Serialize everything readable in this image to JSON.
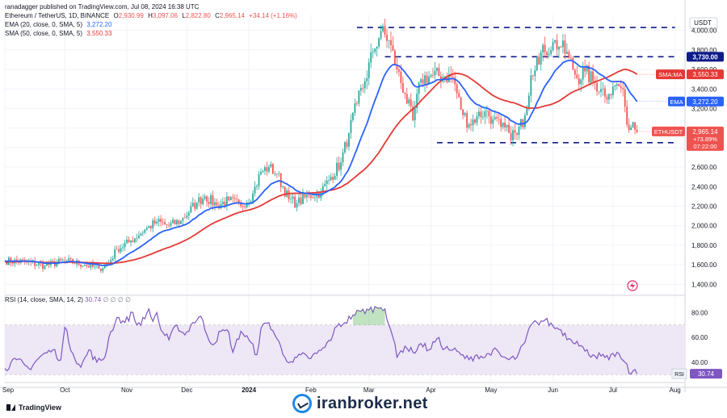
{
  "header": {
    "published": "ranadagger published on TradingView.com, Jul 08, 2024 16:38 UTC",
    "symbol_line": {
      "title": "Ethereum / TetherUS, 1D, BINANCE",
      "o_label": "O",
      "o": "2,930.99",
      "h_label": "H",
      "h": "3,097.06",
      "l_label": "L",
      "l": "2,822.80",
      "c_label": "C",
      "c": "2,965.14",
      "change": "+34.14 (+1.16%)"
    },
    "ema_line": {
      "label": "EMA (20, close, 0, SMA, 5)",
      "value": "3,272.20"
    },
    "sma_line": {
      "label": "SMA (50, close, 0, SMA, 5)",
      "value": "3,550.33"
    }
  },
  "rsi_header": {
    "label": "RSI (14, close, SMA, 14, 2)",
    "value": "30.74",
    "extra": "∅ ∅ ∅ ∅"
  },
  "footer": {
    "brand": "TradingView",
    "watermark": "iranbroker.net"
  },
  "colors": {
    "up": "#26a69a",
    "down": "#ef5350",
    "ema": "#2962ff",
    "sma": "#e53935",
    "rsi": "#7e57c2",
    "rsi_band": "#ede7f6",
    "level": "#0d1b8a",
    "pane_bg": "#ffffff"
  },
  "chart_data": [
    {
      "type": "candlestick",
      "title": "Ethereum / TetherUS, 1D, BINANCE",
      "currency_label": "USDT",
      "y_ticks": [
        1400,
        1600,
        1800,
        2000,
        2200,
        2400,
        2600,
        2800,
        3000,
        3200,
        3400,
        3600,
        3800,
        4000
      ],
      "y_tick_labels": [
        "1,400.00",
        "1,600.00",
        "1,800.00",
        "2,000.00",
        "2,200.00",
        "2,400.00",
        "2,600.00",
        "2,800.00",
        "3,000.00",
        "3,200.00",
        "3,400.00",
        "3,600.00",
        "3,800.00",
        "4,000.00"
      ],
      "ylim": [
        1320,
        4080
      ],
      "x_labels": [
        "Sep",
        "Oct",
        "Nov",
        "Dec",
        "2024",
        "Feb",
        "Mar",
        "Apr",
        "May",
        "Jun",
        "Jul",
        "Aug"
      ],
      "x_label_days": [
        0,
        30,
        61,
        91,
        122,
        153,
        182,
        213,
        243,
        274,
        304,
        335
      ],
      "x_range_days": [
        0,
        340
      ],
      "series": [
        {
          "name": "ETHUSDT",
          "anchors": [
            [
              0,
              1640
            ],
            [
              10,
              1630
            ],
            [
              20,
              1590
            ],
            [
              30,
              1640
            ],
            [
              40,
              1600
            ],
            [
              47,
              1560
            ],
            [
              52,
              1620
            ],
            [
              56,
              1760
            ],
            [
              62,
              1830
            ],
            [
              70,
              1960
            ],
            [
              76,
              2040
            ],
            [
              82,
              2000
            ],
            [
              88,
              2050
            ],
            [
              96,
              2240
            ],
            [
              100,
              2300
            ],
            [
              106,
              2210
            ],
            [
              112,
              2260
            ],
            [
              118,
              2200
            ],
            [
              124,
              2330
            ],
            [
              128,
              2550
            ],
            [
              132,
              2600
            ],
            [
              136,
              2530
            ],
            [
              142,
              2270
            ],
            [
              146,
              2230
            ],
            [
              152,
              2310
            ],
            [
              158,
              2340
            ],
            [
              163,
              2500
            ],
            [
              168,
              2650
            ],
            [
              172,
              2950
            ],
            [
              176,
              3250
            ],
            [
              180,
              3480
            ],
            [
              184,
              3780
            ],
            [
              188,
              3990
            ],
            [
              192,
              3900
            ],
            [
              196,
              3600
            ],
            [
              200,
              3350
            ],
            [
              204,
              3080
            ],
            [
              208,
              3500
            ],
            [
              214,
              3540
            ],
            [
              220,
              3530
            ],
            [
              224,
              3520
            ],
            [
              228,
              3190
            ],
            [
              232,
              3040
            ],
            [
              236,
              3120
            ],
            [
              240,
              3170
            ],
            [
              244,
              3090
            ],
            [
              248,
              3010
            ],
            [
              252,
              2950
            ],
            [
              256,
              2930
            ],
            [
              260,
              3130
            ],
            [
              263,
              3540
            ],
            [
              266,
              3730
            ],
            [
              270,
              3780
            ],
            [
              274,
              3880
            ],
            [
              278,
              3830
            ],
            [
              282,
              3720
            ],
            [
              286,
              3510
            ],
            [
              290,
              3580
            ],
            [
              294,
              3480
            ],
            [
              298,
              3400
            ],
            [
              302,
              3350
            ],
            [
              306,
              3450
            ],
            [
              308,
              3410
            ],
            [
              310,
              3220
            ],
            [
              312,
              2980
            ],
            [
              314,
              3060
            ],
            [
              316,
              2960
            ]
          ]
        },
        {
          "name": "EMA (20, close, 0, SMA, 5)",
          "last": 3272.2
        },
        {
          "name": "SMA (50, close, 0, SMA, 5)",
          "last": 3550.33
        }
      ],
      "levels": [
        {
          "value": 4030,
          "from_day": 176,
          "to_day": 335,
          "label": ""
        },
        {
          "value": 3730,
          "from_day": 190,
          "to_day": 335,
          "label": "3,730.00"
        },
        {
          "value": 2850,
          "from_day": 216,
          "to_day": 335,
          "label": "2,850.00"
        }
      ],
      "price_tags": [
        {
          "name": "sma",
          "value": 3550.33,
          "title": "SMA:MA",
          "label": "3,550.33"
        },
        {
          "name": "ema",
          "value": 3272.2,
          "title": "EMA",
          "label": "3,272.20"
        },
        {
          "name": "last",
          "value": 2965.14,
          "title": "ETHUSDT",
          "label": "2,965.14",
          "sub1": "+73.89%",
          "sub2": "07:22:00"
        }
      ]
    },
    {
      "type": "line",
      "title": "RSI (14, close, SMA, 14, 2)",
      "y_ticks": [
        40,
        60,
        80
      ],
      "y_tick_labels": [
        "40.00",
        "60.00",
        "80.00"
      ],
      "ylim": [
        25,
        90
      ],
      "band": [
        30,
        70
      ],
      "last": 30.74,
      "last_label": "30.74",
      "series": [
        {
          "name": "RSI",
          "anchors": [
            [
              0,
              35
            ],
            [
              6,
              42
            ],
            [
              12,
              35
            ],
            [
              18,
              45
            ],
            [
              24,
              50
            ],
            [
              28,
              42
            ],
            [
              30,
              68
            ],
            [
              34,
              47
            ],
            [
              38,
              36
            ],
            [
              42,
              50
            ],
            [
              46,
              40
            ],
            [
              50,
              44
            ],
            [
              52,
              60
            ],
            [
              56,
              76
            ],
            [
              60,
              72
            ],
            [
              64,
              80
            ],
            [
              66,
              70
            ],
            [
              70,
              75
            ],
            [
              72,
              83
            ],
            [
              74,
              73
            ],
            [
              76,
              80
            ],
            [
              78,
              66
            ],
            [
              82,
              58
            ],
            [
              86,
              70
            ],
            [
              90,
              62
            ],
            [
              94,
              72
            ],
            [
              98,
              77
            ],
            [
              100,
              66
            ],
            [
              104,
              54
            ],
            [
              108,
              65
            ],
            [
              112,
              64
            ],
            [
              114,
              48
            ],
            [
              118,
              65
            ],
            [
              122,
              58
            ],
            [
              126,
              46
            ],
            [
              128,
              67
            ],
            [
              132,
              72
            ],
            [
              136,
              59
            ],
            [
              140,
              44
            ],
            [
              144,
              40
            ],
            [
              148,
              46
            ],
            [
              152,
              43
            ],
            [
              156,
              47
            ],
            [
              160,
              52
            ],
            [
              164,
              62
            ],
            [
              166,
              69
            ],
            [
              170,
              72
            ],
            [
              174,
              78
            ],
            [
              178,
              81
            ],
            [
              182,
              82
            ],
            [
              186,
              84
            ],
            [
              188,
              84
            ],
            [
              190,
              83
            ],
            [
              194,
              60
            ],
            [
              196,
              44
            ],
            [
              200,
              53
            ],
            [
              204,
              48
            ],
            [
              208,
              55
            ],
            [
              212,
              50
            ],
            [
              216,
              59
            ],
            [
              220,
              51
            ],
            [
              224,
              50
            ],
            [
              228,
              46
            ],
            [
              232,
              42
            ],
            [
              236,
              46
            ],
            [
              240,
              44
            ],
            [
              244,
              50
            ],
            [
              248,
              45
            ],
            [
              252,
              42
            ],
            [
              256,
              44
            ],
            [
              260,
              56
            ],
            [
              263,
              70
            ],
            [
              266,
              72
            ],
            [
              270,
              74
            ],
            [
              274,
              69
            ],
            [
              278,
              66
            ],
            [
              282,
              59
            ],
            [
              286,
              57
            ],
            [
              290,
              49
            ],
            [
              294,
              46
            ],
            [
              298,
              45
            ],
            [
              302,
              42
            ],
            [
              306,
              48
            ],
            [
              308,
              43
            ],
            [
              310,
              40
            ],
            [
              312,
              31
            ],
            [
              314,
              33
            ],
            [
              316,
              31
            ]
          ]
        }
      ]
    }
  ]
}
